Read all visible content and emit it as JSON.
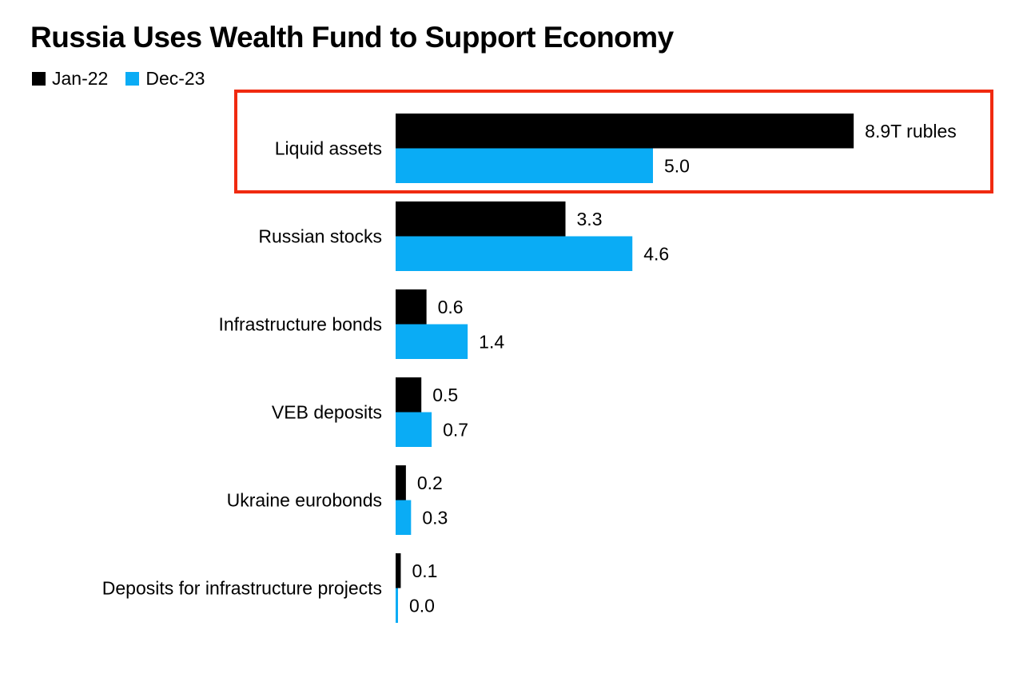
{
  "chart_data": {
    "type": "bar",
    "orientation": "horizontal",
    "title": "Russia Uses Wealth Fund to Support Economy",
    "categories": [
      "Liquid assets",
      "Russian stocks",
      "Infrastructure bonds",
      "VEB deposits",
      "Ukraine eurobonds",
      "Deposits for infrastructure projects"
    ],
    "series": [
      {
        "name": "Jan-22",
        "color": "#000000",
        "values": [
          8.9,
          3.3,
          0.6,
          0.5,
          0.2,
          0.1
        ],
        "labels": [
          "8.9T rubles",
          "3.3",
          "0.6",
          "0.5",
          "0.2",
          "0.1"
        ]
      },
      {
        "name": "Dec-23",
        "color": "#0aacf5",
        "values": [
          5.0,
          4.6,
          1.4,
          0.7,
          0.3,
          0.0
        ],
        "labels": [
          "5.0",
          "4.6",
          "1.4",
          "0.7",
          "0.3",
          "0.0"
        ]
      }
    ],
    "xlim": [
      0,
      10
    ],
    "grid": false,
    "legend_placement": "top-left",
    "highlight": {
      "category": "Liquid assets",
      "color": "#f02a10"
    }
  }
}
